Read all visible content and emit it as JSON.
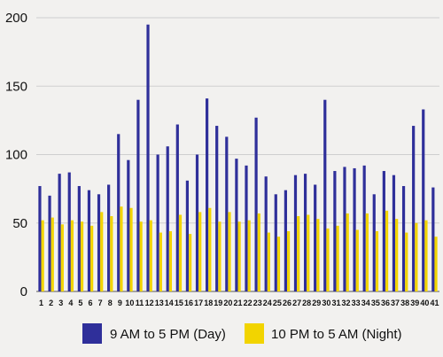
{
  "chart_data": {
    "type": "bar",
    "categories": [
      "1",
      "2",
      "3",
      "4",
      "5",
      "6",
      "7",
      "8",
      "9",
      "10",
      "11",
      "12",
      "13",
      "14",
      "15",
      "16",
      "17",
      "18",
      "19",
      "20",
      "21",
      "22",
      "23",
      "24",
      "25",
      "26",
      "27",
      "28",
      "29",
      "30",
      "31",
      "32",
      "33",
      "34",
      "35",
      "36",
      "37",
      "38",
      "39",
      "40",
      "41"
    ],
    "series": [
      {
        "name": "9 AM to 5 PM (Day)",
        "color": "#2f2f9a",
        "values": [
          77,
          70,
          86,
          87,
          77,
          74,
          71,
          78,
          115,
          96,
          140,
          195,
          100,
          106,
          122,
          81,
          100,
          141,
          121,
          113,
          97,
          92,
          127,
          84,
          71,
          74,
          85,
          86,
          78,
          140,
          88,
          91,
          90,
          92,
          71,
          88,
          85,
          77,
          121,
          133,
          76
        ]
      },
      {
        "name": "10 PM to 5 AM (Night)",
        "color": "#f2d400",
        "values": [
          52,
          54,
          49,
          52,
          51,
          48,
          58,
          55,
          62,
          61,
          51,
          52,
          43,
          44,
          56,
          42,
          58,
          61,
          51,
          58,
          51,
          52,
          57,
          43,
          40,
          44,
          55,
          56,
          53,
          46,
          48,
          57,
          45,
          57,
          44,
          59,
          53,
          43,
          50,
          52,
          40
        ]
      }
    ],
    "yticks": [
      0,
      50,
      100,
      150,
      200
    ],
    "ylim": [
      0,
      200
    ],
    "grid": true,
    "legend": "bottom"
  }
}
